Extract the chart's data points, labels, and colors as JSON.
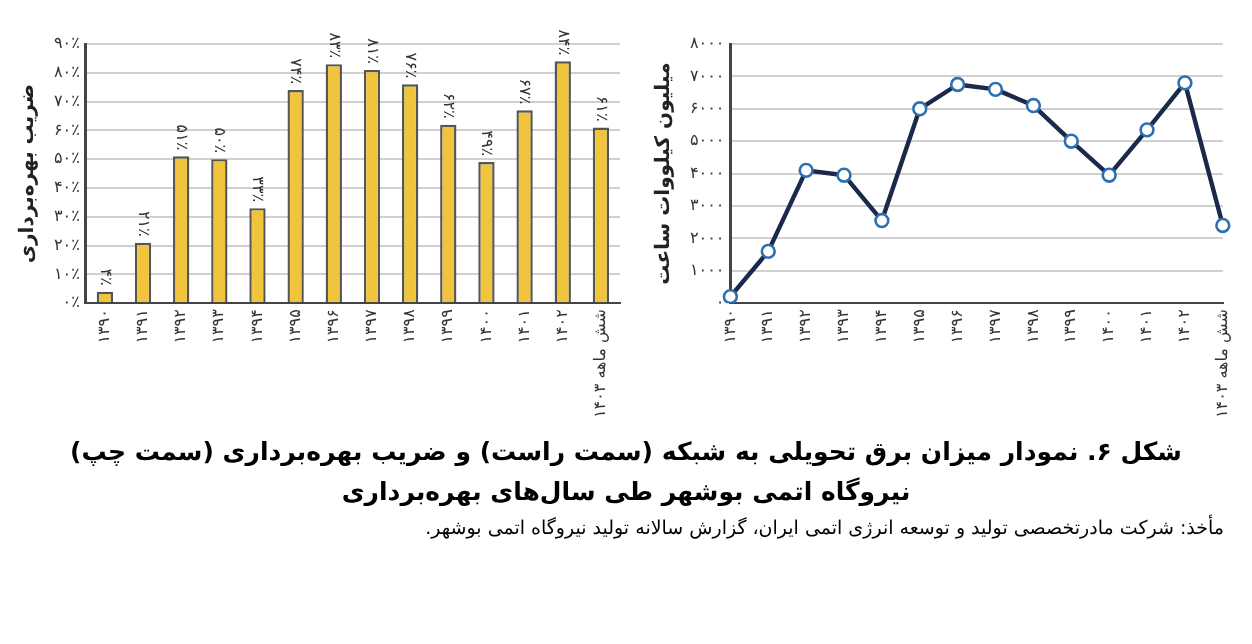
{
  "chart_data": [
    {
      "type": "bar",
      "ylabel": "ضریب بهره‌برداری",
      "categories": [
        "۱۳۹۰",
        "۱۳۹۱",
        "۱۳۹۲",
        "۱۳۹۳",
        "۱۳۹۴",
        "۱۳۹۵",
        "۱۳۹۶",
        "۱۳۹۷",
        "۱۳۹۸",
        "۱۳۹۹",
        "۱۴۰۰",
        "۱۴۰۱",
        "۱۴۰۲",
        "شش ماهه ۱۴۰۳"
      ],
      "values": [
        4,
        21,
        51,
        50,
        33,
        74,
        83,
        81,
        76,
        62,
        49,
        67,
        84,
        61
      ],
      "value_labels": [
        "۴٪",
        "۲۱٪",
        "۵۱٪",
        "۵۰٪",
        "۳۳٪",
        "۷۴٪",
        "۸۳٪",
        "۸۱٪",
        "۷۶٪",
        "۶۲٪",
        "۴۹٪",
        "۶۷٪",
        "۸۴٪",
        "۶۱٪"
      ],
      "color": "#f0c43c",
      "ylim": [
        0,
        90
      ],
      "yticks": [
        {
          "value": 0,
          "label": "۰٪"
        },
        {
          "value": 10,
          "label": "۱۰٪"
        },
        {
          "value": 20,
          "label": "۲۰٪"
        },
        {
          "value": 30,
          "label": "۳۰٪"
        },
        {
          "value": 40,
          "label": "۴۰٪"
        },
        {
          "value": 50,
          "label": "۵۰٪"
        },
        {
          "value": 60,
          "label": "۶۰٪"
        },
        {
          "value": 70,
          "label": "۷۰٪"
        },
        {
          "value": 80,
          "label": "۸۰٪"
        },
        {
          "value": 90,
          "label": "۹۰٪"
        }
      ],
      "grid": "y"
    },
    {
      "type": "line",
      "ylabel": "میلیون کیلووات ساعت",
      "categories": [
        "۱۳۹۰",
        "۱۳۹۱",
        "۱۳۹۲",
        "۱۳۹۳",
        "۱۳۹۴",
        "۱۳۹۵",
        "۱۳۹۶",
        "۱۳۹۷",
        "۱۳۹۸",
        "۱۳۹۹",
        "۱۴۰۰",
        "۱۴۰۱",
        "۱۴۰۲",
        "شش ماهه ۱۴۰۳"
      ],
      "values": [
        200,
        1600,
        4100,
        3950,
        2550,
        6000,
        6750,
        6600,
        6100,
        5000,
        3950,
        5350,
        6800,
        2400
      ],
      "color": "#1b2a4a",
      "marker": "circle",
      "line_style": "solid",
      "ylim": [
        0,
        8000
      ],
      "yticks": [
        {
          "value": 0,
          "label": "۰"
        },
        {
          "value": 1000,
          "label": "۱۰۰۰"
        },
        {
          "value": 2000,
          "label": "۲۰۰۰"
        },
        {
          "value": 3000,
          "label": "۳۰۰۰"
        },
        {
          "value": 4000,
          "label": "۴۰۰۰"
        },
        {
          "value": 5000,
          "label": "۵۰۰۰"
        },
        {
          "value": 6000,
          "label": "۶۰۰۰"
        },
        {
          "value": 7000,
          "label": "۷۰۰۰"
        },
        {
          "value": 8000,
          "label": "۸۰۰۰"
        }
      ],
      "grid": "y"
    },
    {
      "type": "other",
      "title": "شکل ۶. نمودار میزان برق تحویلی به شبکه (سمت راست) و ضریب بهره‌برداری (سمت چپ)",
      "subtitle": "نیروگاه اتمی بوشهر طی سال‌های بهره‌برداری",
      "annotations": [
        "مأخذ: شرکت مادرتخصصی تولید و توسعه انرژی اتمی ایران، گزارش سالانه تولید نیروگاه اتمی بوشهر."
      ]
    }
  ]
}
